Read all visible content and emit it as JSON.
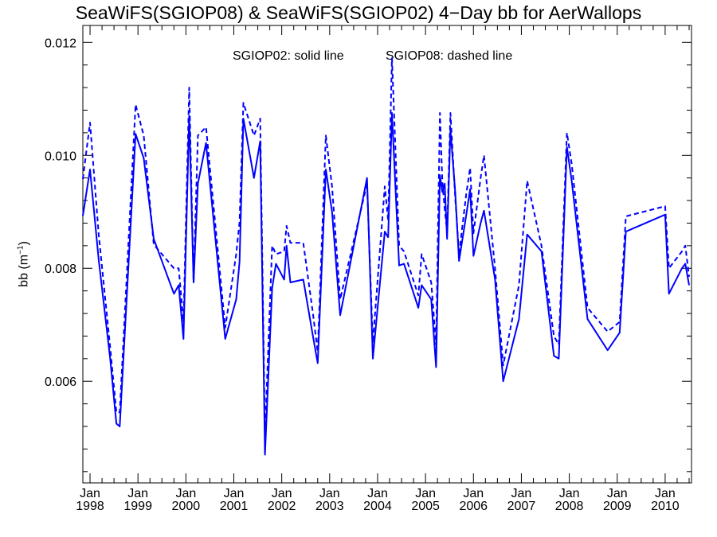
{
  "chart_data": {
    "type": "line",
    "title": "SeaWiFS(SGIOP08) & SeaWiFS(SGIOP02) 4−Day bb for AerWallops",
    "xlabel": "",
    "ylabel": "bb (m⁻¹)",
    "xlim": [
      1997.85,
      2010.55
    ],
    "ylim": [
      0.0042,
      0.0123
    ],
    "yticks": [
      "0.006",
      "0.008",
      "0.010",
      "0.012"
    ],
    "xticks": [
      {
        "month": "Jan",
        "year": "1998",
        "x": 1998.0
      },
      {
        "month": "Jan",
        "year": "1999",
        "x": 1999.0
      },
      {
        "month": "Jan",
        "year": "2000",
        "x": 2000.0
      },
      {
        "month": "Jan",
        "year": "2001",
        "x": 2001.0
      },
      {
        "month": "Jan",
        "year": "2002",
        "x": 2002.0
      },
      {
        "month": "Jan",
        "year": "2003",
        "x": 2003.0
      },
      {
        "month": "Jan",
        "year": "2004",
        "x": 2004.0
      },
      {
        "month": "Jan",
        "year": "2005",
        "x": 2005.0
      },
      {
        "month": "Jan",
        "year": "2006",
        "x": 2006.0
      },
      {
        "month": "Jan",
        "year": "2007",
        "x": 2007.0
      },
      {
        "month": "Jan",
        "year": "2008",
        "x": 2008.0
      },
      {
        "month": "Jan",
        "year": "2009",
        "x": 2009.0
      },
      {
        "month": "Jan",
        "year": "2010",
        "x": 2010.0
      }
    ],
    "annotations": [
      "SGIOP02: solid line",
      "SGIOP08: dashed line"
    ],
    "color": "#0000ff",
    "series": [
      {
        "name": "SGIOP02",
        "style": "solid",
        "points": [
          [
            1997.85,
            0.00893
          ],
          [
            1998.0,
            0.00975
          ],
          [
            1998.18,
            0.00815
          ],
          [
            1998.42,
            0.0064
          ],
          [
            1998.55,
            0.00525
          ],
          [
            1998.62,
            0.0052
          ],
          [
            1998.95,
            0.01038
          ],
          [
            1999.12,
            0.00995
          ],
          [
            1999.33,
            0.00852
          ],
          [
            1999.75,
            0.00755
          ],
          [
            1999.85,
            0.0077
          ],
          [
            1999.95,
            0.00675
          ],
          [
            2000.07,
            0.0107
          ],
          [
            2000.16,
            0.00775
          ],
          [
            2000.25,
            0.0095
          ],
          [
            2000.42,
            0.01022
          ],
          [
            2000.82,
            0.00675
          ],
          [
            2001.05,
            0.00745
          ],
          [
            2001.12,
            0.00812
          ],
          [
            2001.2,
            0.01065
          ],
          [
            2001.42,
            0.0096
          ],
          [
            2001.55,
            0.01025
          ],
          [
            2001.65,
            0.0047
          ],
          [
            2001.8,
            0.00765
          ],
          [
            2001.88,
            0.00808
          ],
          [
            2002.05,
            0.0078
          ],
          [
            2002.1,
            0.0084
          ],
          [
            2002.18,
            0.00775
          ],
          [
            2002.45,
            0.0078
          ],
          [
            2002.65,
            0.0068
          ],
          [
            2002.75,
            0.00632
          ],
          [
            2002.92,
            0.00975
          ],
          [
            2003.05,
            0.009
          ],
          [
            2003.22,
            0.00717
          ],
          [
            2003.78,
            0.0096
          ],
          [
            2003.9,
            0.0064
          ],
          [
            2004.15,
            0.00865
          ],
          [
            2004.22,
            0.00855
          ],
          [
            2004.3,
            0.01075
          ],
          [
            2004.45,
            0.00805
          ],
          [
            2004.55,
            0.00808
          ],
          [
            2004.85,
            0.0073
          ],
          [
            2004.92,
            0.0077
          ],
          [
            2005.12,
            0.00745
          ],
          [
            2005.22,
            0.00625
          ],
          [
            2005.3,
            0.00965
          ],
          [
            2005.35,
            0.00935
          ],
          [
            2005.4,
            0.0095
          ],
          [
            2005.45,
            0.00852
          ],
          [
            2005.52,
            0.01045
          ],
          [
            2005.62,
            0.00935
          ],
          [
            2005.7,
            0.00813
          ],
          [
            2005.85,
            0.00895
          ],
          [
            2005.93,
            0.0094
          ],
          [
            2006.0,
            0.00822
          ],
          [
            2006.15,
            0.0088
          ],
          [
            2006.22,
            0.00902
          ],
          [
            2006.45,
            0.0078
          ],
          [
            2006.62,
            0.006
          ],
          [
            2006.95,
            0.0071
          ],
          [
            2007.12,
            0.0086
          ],
          [
            2007.42,
            0.0083
          ],
          [
            2007.68,
            0.00645
          ],
          [
            2007.78,
            0.0064
          ],
          [
            2007.95,
            0.01015
          ],
          [
            2008.05,
            0.00955
          ],
          [
            2008.38,
            0.0071
          ],
          [
            2008.8,
            0.00655
          ],
          [
            2009.05,
            0.00686
          ],
          [
            2009.18,
            0.00865
          ],
          [
            2010.0,
            0.00895
          ],
          [
            2010.08,
            0.00755
          ],
          [
            2010.35,
            0.008
          ],
          [
            2010.42,
            0.00808
          ],
          [
            2010.5,
            0.0077
          ]
        ]
      },
      {
        "name": "SGIOP08",
        "style": "dashed",
        "points": [
          [
            1997.85,
            0.00958
          ],
          [
            1998.0,
            0.01058
          ],
          [
            1998.18,
            0.0086
          ],
          [
            1998.42,
            0.0066
          ],
          [
            1998.55,
            0.00545
          ],
          [
            1998.62,
            0.00545
          ],
          [
            1998.95,
            0.0109
          ],
          [
            1999.12,
            0.01035
          ],
          [
            1999.33,
            0.00842
          ],
          [
            1999.75,
            0.008
          ],
          [
            1999.85,
            0.008
          ],
          [
            1999.95,
            0.00705
          ],
          [
            2000.07,
            0.0112
          ],
          [
            2000.16,
            0.00775
          ],
          [
            2000.25,
            0.01035
          ],
          [
            2000.42,
            0.0105
          ],
          [
            2000.82,
            0.00695
          ],
          [
            2001.05,
            0.00825
          ],
          [
            2001.12,
            0.00882
          ],
          [
            2001.2,
            0.01093
          ],
          [
            2001.42,
            0.01035
          ],
          [
            2001.55,
            0.01065
          ],
          [
            2001.65,
            0.00505
          ],
          [
            2001.8,
            0.0084
          ],
          [
            2001.88,
            0.00825
          ],
          [
            2002.05,
            0.0083
          ],
          [
            2002.1,
            0.00875
          ],
          [
            2002.18,
            0.00845
          ],
          [
            2002.45,
            0.00845
          ],
          [
            2002.65,
            0.0072
          ],
          [
            2002.75,
            0.00652
          ],
          [
            2002.92,
            0.01035
          ],
          [
            2003.05,
            0.00945
          ],
          [
            2003.22,
            0.00745
          ],
          [
            2003.78,
            0.0095
          ],
          [
            2003.9,
            0.00668
          ],
          [
            2004.15,
            0.00945
          ],
          [
            2004.22,
            0.00885
          ],
          [
            2004.3,
            0.01172
          ],
          [
            2004.45,
            0.0084
          ],
          [
            2004.55,
            0.0083
          ],
          [
            2004.85,
            0.00752
          ],
          [
            2004.92,
            0.00825
          ],
          [
            2005.12,
            0.00775
          ],
          [
            2005.22,
            0.00665
          ],
          [
            2005.3,
            0.01075
          ],
          [
            2005.35,
            0.00955
          ],
          [
            2005.4,
            0.00905
          ],
          [
            2005.45,
            0.00865
          ],
          [
            2005.52,
            0.01075
          ],
          [
            2005.62,
            0.00925
          ],
          [
            2005.7,
            0.00825
          ],
          [
            2005.85,
            0.00932
          ],
          [
            2005.93,
            0.00978
          ],
          [
            2006.0,
            0.00862
          ],
          [
            2006.15,
            0.0096
          ],
          [
            2006.22,
            0.01
          ],
          [
            2006.45,
            0.008
          ],
          [
            2006.62,
            0.00628
          ],
          [
            2006.95,
            0.0077
          ],
          [
            2007.12,
            0.00955
          ],
          [
            2007.42,
            0.0084
          ],
          [
            2007.68,
            0.0068
          ],
          [
            2007.78,
            0.00665
          ],
          [
            2007.95,
            0.0104
          ],
          [
            2008.05,
            0.00985
          ],
          [
            2008.38,
            0.0073
          ],
          [
            2008.8,
            0.00688
          ],
          [
            2009.05,
            0.00705
          ],
          [
            2009.18,
            0.00892
          ],
          [
            2010.0,
            0.0091
          ],
          [
            2010.08,
            0.008
          ],
          [
            2010.35,
            0.0083
          ],
          [
            2010.42,
            0.0084
          ],
          [
            2010.5,
            0.00785
          ]
        ]
      }
    ]
  }
}
